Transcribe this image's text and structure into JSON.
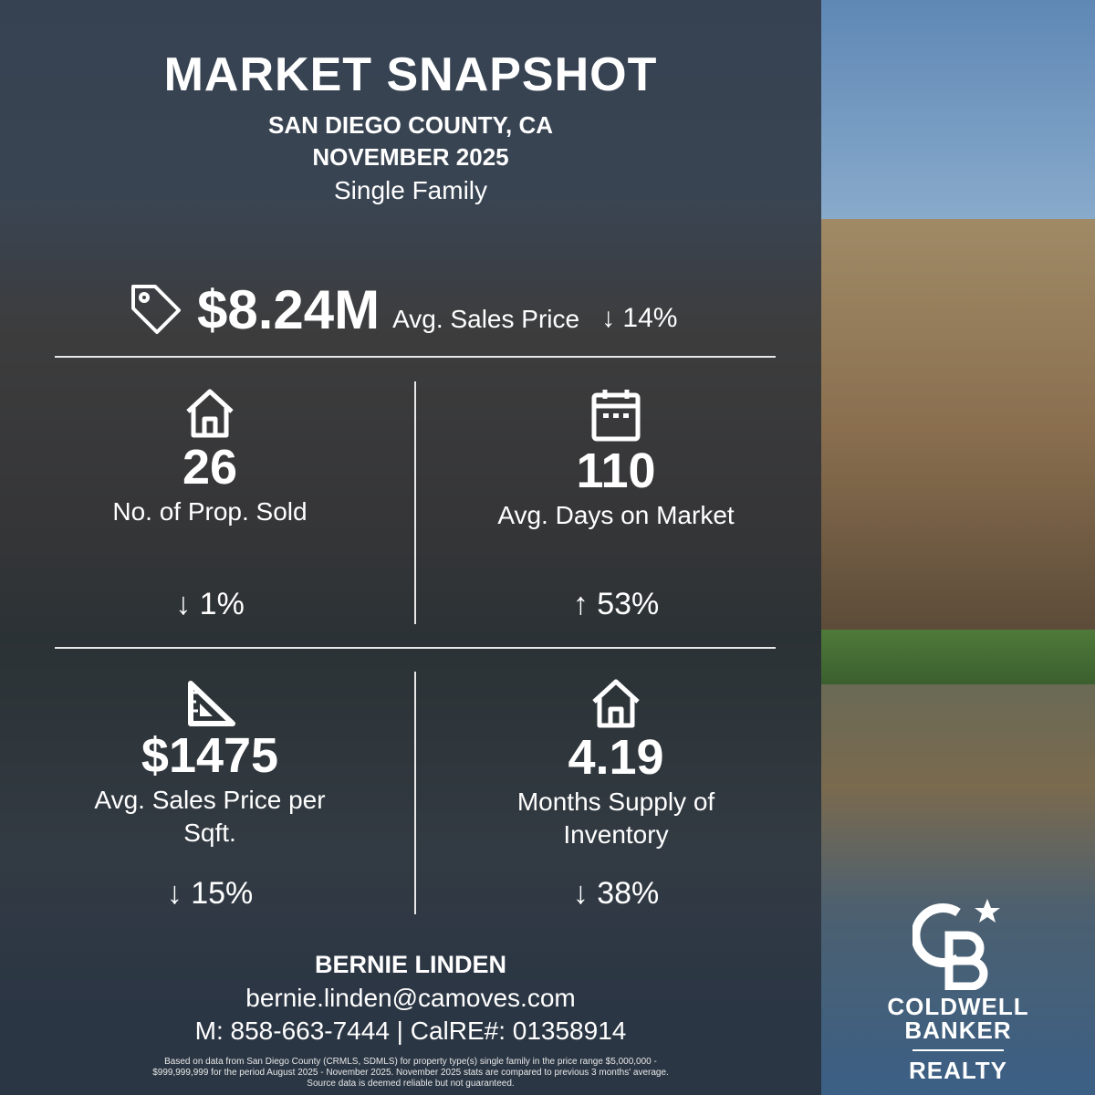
{
  "header": {
    "title": "MARKET SNAPSHOT",
    "location": "SAN DIEGO COUNTY, CA",
    "period": "NOVEMBER 2025",
    "property_type": "Single Family"
  },
  "hero": {
    "icon": "price-tag-icon",
    "value": "$8.24M",
    "label": "Avg. Sales Price",
    "change": "14%",
    "direction": "down"
  },
  "stats": [
    {
      "icon": "house-icon",
      "value": "26",
      "label": "No. of Prop. Sold",
      "change": "1%",
      "direction": "down"
    },
    {
      "icon": "calendar-icon",
      "value": "110",
      "label": "Avg. Days on Market",
      "change": "53%",
      "direction": "up"
    },
    {
      "icon": "ruler-triangle-icon",
      "value": "$1475",
      "label": "Avg. Sales Price per Sqft.",
      "change": "15%",
      "direction": "down"
    },
    {
      "icon": "house-icon",
      "value": "4.19",
      "label": "Months Supply of Inventory",
      "change": "38%",
      "direction": "down"
    }
  ],
  "agent": {
    "name": "BERNIE LINDEN",
    "email": "bernie.linden@camoves.com",
    "phone_line": "M: 858-663-7444 | CalRE#: 01358914"
  },
  "disclaimer": "Based on data from San Diego County (CRMLS, SDMLS) for property type(s) single family in the price range $5,000,000 - $999,999,999 for the period August 2025 - November 2025. November 2025 stats are compared to previous 3 months' average. Source data is deemed reliable but not guaranteed.",
  "brand": {
    "line1": "COLDWELL",
    "line2": "BANKER",
    "line3": "REALTY",
    "monogram": "CB"
  },
  "arrows": {
    "down": "↓",
    "up": "↑"
  }
}
